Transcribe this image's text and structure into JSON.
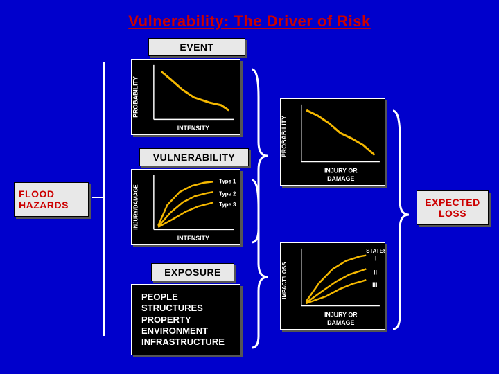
{
  "title": {
    "text": "Vulnerability: The Driver of Risk",
    "color": "#cc0000",
    "fontsize": 22
  },
  "background_color": "#0000cc",
  "boxes": {
    "flood_hazards": {
      "line1": "FLOOD",
      "line2": "HAZARDS",
      "text_color": "#cc0000"
    },
    "event": {
      "label": "EVENT"
    },
    "vulnerability": {
      "label": "VULNERABILITY"
    },
    "exposure": {
      "label": "EXPOSURE"
    },
    "expected_loss": {
      "line1": "EXPECTED",
      "line2": "LOSS",
      "text_color": "#cc0000"
    }
  },
  "exposure_list": {
    "items": [
      "PEOPLE",
      "STRUCTURES",
      "PROPERTY",
      "ENVIRONMENT",
      "INFRASTRUCTURE"
    ],
    "bg": "#000000",
    "fg": "#ffffff"
  },
  "axis_label_color": "#ffffff",
  "curve_color": "#f5b800",
  "chart_bg": "#000000",
  "charts": {
    "event": {
      "type": "line",
      "xlabel": "INTENSITY",
      "ylabel": "PROBABILITY",
      "series": [
        {
          "points": [
            [
              0.08,
              0.9
            ],
            [
              0.2,
              0.75
            ],
            [
              0.35,
              0.55
            ],
            [
              0.5,
              0.4
            ],
            [
              0.7,
              0.3
            ],
            [
              0.85,
              0.25
            ],
            [
              0.95,
              0.15
            ]
          ],
          "color": "#f5b800",
          "width": 3
        }
      ]
    },
    "vulnerability": {
      "type": "line",
      "xlabel": "INTENSITY",
      "ylabel": "INJURY/DAMAGE",
      "series": [
        {
          "label": "Type 1",
          "points": [
            [
              0.05,
              0.05
            ],
            [
              0.2,
              0.45
            ],
            [
              0.4,
              0.7
            ],
            [
              0.6,
              0.82
            ],
            [
              0.8,
              0.88
            ],
            [
              0.95,
              0.9
            ]
          ],
          "color": "#f5b800",
          "width": 3
        },
        {
          "label": "Type 2",
          "points": [
            [
              0.05,
              0.03
            ],
            [
              0.25,
              0.3
            ],
            [
              0.45,
              0.5
            ],
            [
              0.65,
              0.62
            ],
            [
              0.85,
              0.68
            ],
            [
              0.95,
              0.7
            ]
          ],
          "color": "#f5b800",
          "width": 3
        },
        {
          "label": "Type 3",
          "points": [
            [
              0.05,
              0.02
            ],
            [
              0.3,
              0.18
            ],
            [
              0.5,
              0.32
            ],
            [
              0.7,
              0.42
            ],
            [
              0.9,
              0.48
            ],
            [
              0.95,
              0.5
            ]
          ],
          "color": "#f5b800",
          "width": 3
        }
      ]
    },
    "injury_damage": {
      "type": "line",
      "xlabel": "INJURY OR DAMAGE",
      "ylabel": "PROBABILITY",
      "series": [
        {
          "points": [
            [
              0.05,
              0.92
            ],
            [
              0.2,
              0.82
            ],
            [
              0.35,
              0.68
            ],
            [
              0.5,
              0.5
            ],
            [
              0.65,
              0.4
            ],
            [
              0.8,
              0.28
            ],
            [
              0.95,
              0.1
            ]
          ],
          "color": "#f5b800",
          "width": 3
        }
      ]
    },
    "impact_loss": {
      "type": "line",
      "xlabel": "INJURY OR DAMAGE",
      "ylabel": "IMPACT/LOSS",
      "series": [
        {
          "label": "I",
          "points": [
            [
              0.05,
              0.05
            ],
            [
              0.25,
              0.4
            ],
            [
              0.45,
              0.65
            ],
            [
              0.65,
              0.8
            ],
            [
              0.85,
              0.88
            ],
            [
              0.95,
              0.9
            ]
          ],
          "color": "#f5b800",
          "width": 3
        },
        {
          "label": "II",
          "points": [
            [
              0.05,
              0.03
            ],
            [
              0.3,
              0.25
            ],
            [
              0.5,
              0.42
            ],
            [
              0.7,
              0.55
            ],
            [
              0.88,
              0.62
            ],
            [
              0.95,
              0.65
            ]
          ],
          "color": "#f5b800",
          "width": 3
        },
        {
          "label": "III",
          "points": [
            [
              0.05,
              0.02
            ],
            [
              0.35,
              0.15
            ],
            [
              0.55,
              0.28
            ],
            [
              0.75,
              0.38
            ],
            [
              0.9,
              0.43
            ],
            [
              0.95,
              0.45
            ]
          ],
          "color": "#f5b800",
          "width": 3
        }
      ],
      "rlabel": "STATES"
    }
  }
}
